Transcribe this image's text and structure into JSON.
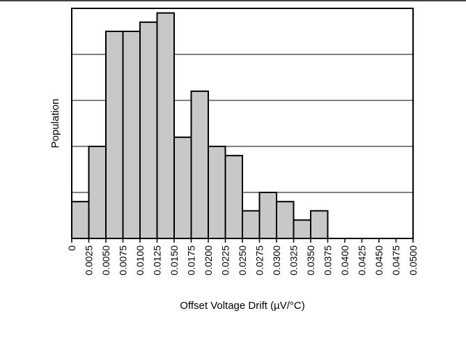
{
  "chart_data": {
    "type": "bar",
    "title": "",
    "xlabel": "Offset Voltage Drift (µV/°C)",
    "ylabel": "Population",
    "x_tick_labels": [
      "0",
      "0.0025",
      "0.0050",
      "0.0075",
      "0.0100",
      "0.0125",
      "0.0150",
      "0.0175",
      "0.0200",
      "0.0225",
      "0.0250",
      "0.0275",
      "0.0300",
      "0.0325",
      "0.0350",
      "0.0375",
      "0.0400",
      "0.0425",
      "0.0450",
      "0.0475",
      "0.0500"
    ],
    "bin_edges": [
      0,
      0.0025,
      0.005,
      0.0075,
      0.01,
      0.0125,
      0.015,
      0.0175,
      0.02,
      0.0225,
      0.025,
      0.0275,
      0.03,
      0.0325,
      0.035,
      0.0375,
      0.04,
      0.0425,
      0.045,
      0.0475,
      0.05
    ],
    "values": [
      0.8,
      2.0,
      4.5,
      4.5,
      4.7,
      4.9,
      2.2,
      3.2,
      2.0,
      1.8,
      0.6,
      1.0,
      0.8,
      0.4,
      0.6,
      0,
      0,
      0,
      0,
      0
    ],
    "ylim": [
      0,
      5
    ],
    "y_gridlines": [
      1,
      2,
      3,
      4
    ],
    "y_tick_labels_shown": false,
    "grid": "horizontal",
    "bar_fill": "#c8c8c8",
    "bar_stroke": "#000000"
  }
}
